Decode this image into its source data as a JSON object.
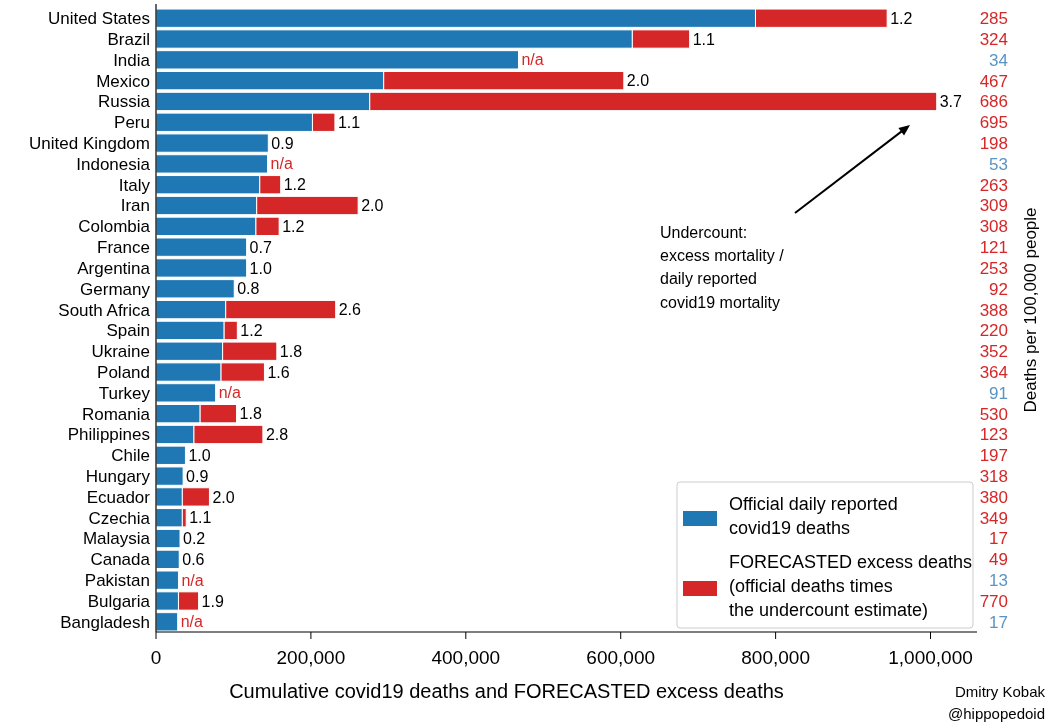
{
  "chart_data": {
    "type": "bar",
    "orientation": "horizontal",
    "stacked": true,
    "xlabel": "Cumulative covid19 deaths and FORECASTED excess deaths",
    "y2label": "Deaths per 100,000 people",
    "categories": [
      "United States",
      "Brazil",
      "India",
      "Mexico",
      "Russia",
      "Peru",
      "United Kingdom",
      "Indonesia",
      "Italy",
      "Iran",
      "Colombia",
      "France",
      "Argentina",
      "Germany",
      "South Africa",
      "Spain",
      "Ukraine",
      "Poland",
      "Turkey",
      "Romania",
      "Philippines",
      "Chile",
      "Hungary",
      "Ecuador",
      "Czechia",
      "Malaysia",
      "Canada",
      "Pakistan",
      "Bulgaria",
      "Bangladesh"
    ],
    "y2_categories": [
      "285",
      "324",
      "34",
      "467",
      "686",
      "695",
      "198",
      "53",
      "263",
      "309",
      "308",
      "121",
      "253",
      "92",
      "388",
      "220",
      "352",
      "364",
      "91",
      "530",
      "123",
      "197",
      "318",
      "380",
      "349",
      "17",
      "49",
      "13",
      "770",
      "17"
    ],
    "series": [
      {
        "name": "Official daily reported\ncovid19 deaths",
        "color": "#1f77b4",
        "values": [
          774000,
          615000,
          468000,
          294000,
          276000,
          202000,
          145000,
          144000,
          134000,
          130000,
          129000,
          117000,
          117000,
          101000,
          90000,
          88000,
          86000,
          84000,
          77000,
          57000,
          49000,
          38000,
          35000,
          34000,
          34000,
          31000,
          30000,
          29000,
          29000,
          28000
        ]
      },
      {
        "name": "FORECASTED excess deaths\n(official deaths times\nthe undercount estimate)",
        "color": "#d62728",
        "values": [
          170000,
          74000,
          null,
          310000,
          732000,
          29000,
          0,
          null,
          27000,
          131000,
          30000,
          0,
          0,
          0,
          142000,
          17000,
          70000,
          56000,
          null,
          47000,
          89000,
          0,
          0,
          35000,
          5000,
          0,
          0,
          null,
          26000,
          null
        ]
      }
    ],
    "xlim": [
      0,
      1060000
    ],
    "xticks": [
      0,
      {
        "value": 200000,
        "label": "200,000"
      },
      {
        "value": 400000,
        "label": "400,000"
      },
      {
        "value": 600000,
        "label": "600,000"
      },
      {
        "value": 800000,
        "label": "800,000"
      },
      {
        "value": 1000000,
        "label": "1,000,000"
      }
    ],
    "legend": "bottom right",
    "annotations": [
      "Undercount:\nexcess mortality /\ndaily reported\ncovid19 mortality",
      "Dmitry Kobak\n@hippopedoid",
      {
        "text": "1.2",
        "x": 944000,
        "y": "United States"
      },
      {
        "text": "1.1",
        "x": 689000,
        "y": "Brazil"
      },
      {
        "text": "n/a",
        "x": 468000,
        "y": "India"
      },
      {
        "text": "2.0",
        "x": 604000,
        "y": "Mexico"
      },
      {
        "text": "3.7",
        "x": 1008000,
        "y": "Russia"
      },
      {
        "text": "1.1",
        "x": 231000,
        "y": "Peru"
      },
      {
        "text": "0.9",
        "x": 145000,
        "y": "United Kingdom"
      },
      {
        "text": "n/a",
        "x": 144000,
        "y": "Indonesia"
      },
      {
        "text": "1.2",
        "x": 161000,
        "y": "Italy"
      },
      {
        "text": "2.0",
        "x": 261000,
        "y": "Iran"
      },
      {
        "text": "1.2",
        "x": 159000,
        "y": "Colombia"
      },
      {
        "text": "0.7",
        "x": 117000,
        "y": "France"
      },
      {
        "text": "1.0",
        "x": 117000,
        "y": "Argentina"
      },
      {
        "text": "0.8",
        "x": 101000,
        "y": "Germany"
      },
      {
        "text": "2.6",
        "x": 232000,
        "y": "South Africa"
      },
      {
        "text": "1.2",
        "x": 105000,
        "y": "Spain"
      },
      {
        "text": "1.8",
        "x": 156000,
        "y": "Ukraine"
      },
      {
        "text": "1.6",
        "x": 140000,
        "y": "Poland"
      },
      {
        "text": "n/a",
        "x": 77000,
        "y": "Turkey"
      },
      {
        "text": "1.8",
        "x": 104000,
        "y": "Romania"
      },
      {
        "text": "2.8",
        "x": 138000,
        "y": "Philippines"
      },
      {
        "text": "1.0",
        "x": 38000,
        "y": "Chile"
      },
      {
        "text": "0.9",
        "x": 35000,
        "y": "Hungary"
      },
      {
        "text": "2.0",
        "x": 69000,
        "y": "Ecuador"
      },
      {
        "text": "1.1",
        "x": 39000,
        "y": "Czechia"
      },
      {
        "text": "0.2",
        "x": 31000,
        "y": "Malaysia"
      },
      {
        "text": "0.6",
        "x": 30000,
        "y": "Canada"
      },
      {
        "text": "n/a",
        "x": 29000,
        "y": "Pakistan"
      },
      {
        "text": "1.9",
        "x": 55000,
        "y": "Bulgaria"
      },
      {
        "text": "n/a",
        "x": 28000,
        "y": "Bangladesh"
      }
    ]
  }
}
